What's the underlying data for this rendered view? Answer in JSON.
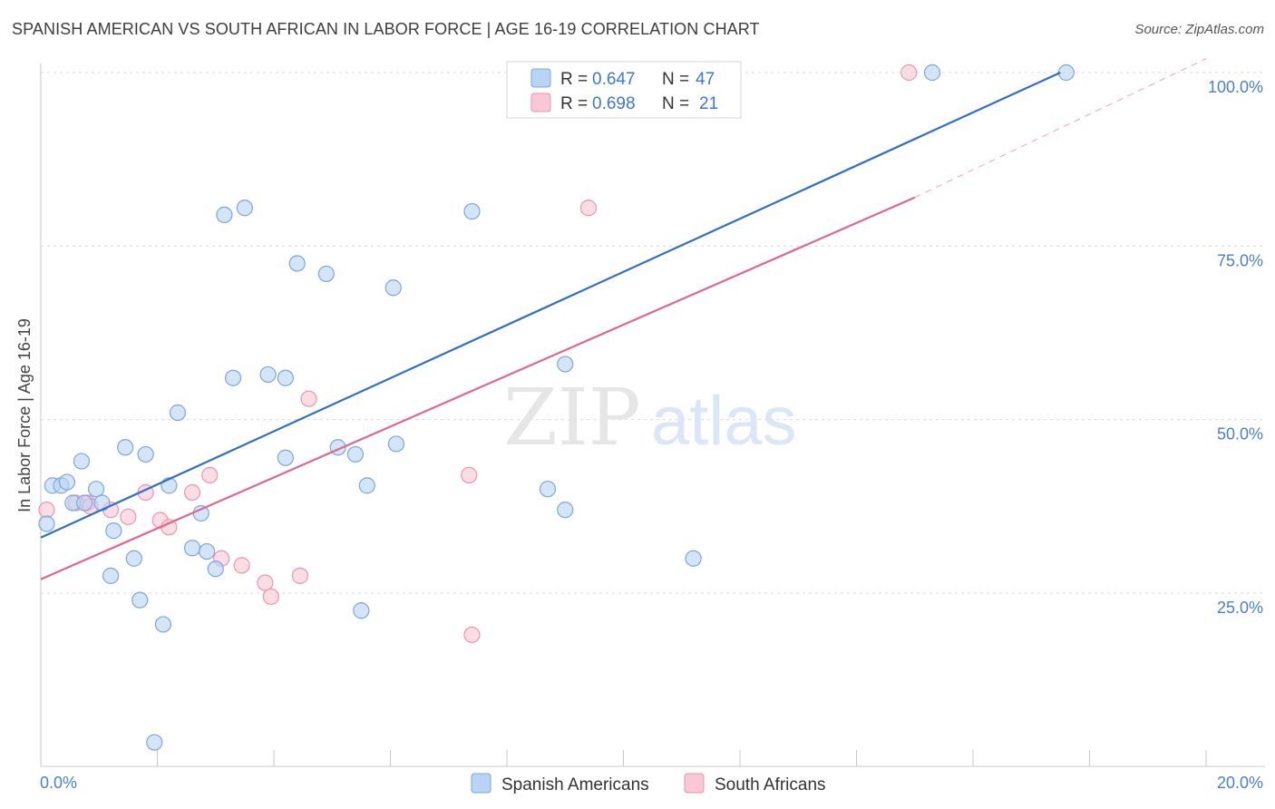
{
  "title": "SPANISH AMERICAN VS SOUTH AFRICAN IN LABOR FORCE | AGE 16-19 CORRELATION CHART",
  "source": "Source: ZipAtlas.com",
  "watermark": {
    "zip": "ZIP",
    "atlas": "atlas"
  },
  "colors": {
    "blue_fill": "#b9d3f4",
    "blue_stroke": "#7aa7e0",
    "blue_line": "#2f6fc9",
    "pink_fill": "#f9c7d6",
    "pink_stroke": "#ee94b1",
    "pink_line": "#e0678f",
    "axis_text": "#4a7fcf",
    "grid": "#d9d9d9"
  },
  "legend": {
    "rows": [
      {
        "r_label": "R =",
        "r_value": "0.647",
        "n_label": "N =",
        "n_value": "47"
      },
      {
        "r_label": "R =",
        "r_value": "0.698",
        "n_label": "N =",
        "n_value": "21"
      }
    ]
  },
  "chart_data": {
    "type": "scatter",
    "title": "SPANISH AMERICAN VS SOUTH AFRICAN IN LABOR FORCE | AGE 16-19 CORRELATION CHART",
    "xlabel": "",
    "ylabel": "In Labor Force | Age 16-19",
    "xlim": [
      0,
      20
    ],
    "ylim": [
      0,
      102
    ],
    "x_tick_labels": [
      "0.0%",
      "20.0%"
    ],
    "y_ticks": [
      25,
      50,
      75,
      100
    ],
    "y_tick_labels": [
      "25.0%",
      "50.0%",
      "75.0%",
      "100.0%"
    ],
    "grid": true,
    "series": [
      {
        "name": "Spanish Americans",
        "r": 0.647,
        "n": 47,
        "trend": {
          "x": [
            0,
            17.5
          ],
          "y": [
            33.0,
            100.0
          ],
          "dashed_to": null
        },
        "points": [
          [
            0.1,
            35.0
          ],
          [
            0.2,
            40.5
          ],
          [
            0.35,
            40.5
          ],
          [
            0.45,
            41.0
          ],
          [
            0.55,
            38.0
          ],
          [
            0.7,
            44.0
          ],
          [
            0.75,
            38.0
          ],
          [
            0.95,
            40.0
          ],
          [
            1.05,
            38.0
          ],
          [
            1.25,
            34.0
          ],
          [
            1.2,
            27.5
          ],
          [
            1.45,
            46.0
          ],
          [
            1.6,
            30.0
          ],
          [
            1.7,
            24.0
          ],
          [
            1.8,
            45.0
          ],
          [
            1.95,
            3.5
          ],
          [
            2.1,
            20.5
          ],
          [
            2.2,
            40.5
          ],
          [
            2.35,
            51.0
          ],
          [
            2.6,
            31.5
          ],
          [
            2.75,
            36.5
          ],
          [
            2.85,
            31.0
          ],
          [
            3.0,
            28.5
          ],
          [
            3.15,
            79.5
          ],
          [
            3.3,
            56.0
          ],
          [
            3.5,
            80.5
          ],
          [
            3.9,
            56.5
          ],
          [
            4.2,
            56.0
          ],
          [
            4.2,
            44.5
          ],
          [
            4.4,
            72.5
          ],
          [
            4.9,
            71.0
          ],
          [
            5.1,
            46.0
          ],
          [
            5.4,
            45.0
          ],
          [
            5.5,
            22.5
          ],
          [
            5.6,
            40.5
          ],
          [
            6.1,
            46.5
          ],
          [
            6.05,
            69.0
          ],
          [
            7.4,
            80.0
          ],
          [
            8.7,
            40.0
          ],
          [
            9.0,
            37.0
          ],
          [
            9.0,
            58.0
          ],
          [
            9.3,
            100.0
          ],
          [
            10.2,
            100.0
          ],
          [
            11.4,
            100.0
          ],
          [
            11.2,
            30.0
          ],
          [
            15.3,
            100.0
          ],
          [
            17.6,
            100.0
          ]
        ]
      },
      {
        "name": "South Africans",
        "r": 0.698,
        "n": 21,
        "trend": {
          "x": [
            0,
            15.0
          ],
          "y": [
            27.0,
            82.0
          ],
          "dashed_to": [
            20,
            102
          ]
        },
        "points": [
          [
            0.1,
            37.0
          ],
          [
            0.8,
            38.0
          ],
          [
            1.2,
            37.0
          ],
          [
            1.5,
            36.0
          ],
          [
            1.8,
            39.5
          ],
          [
            2.05,
            35.5
          ],
          [
            2.2,
            34.5
          ],
          [
            2.6,
            39.5
          ],
          [
            2.9,
            42.0
          ],
          [
            3.1,
            30.0
          ],
          [
            3.45,
            29.0
          ],
          [
            3.85,
            26.5
          ],
          [
            3.95,
            24.5
          ],
          [
            4.45,
            27.5
          ],
          [
            4.6,
            53.0
          ],
          [
            7.35,
            42.0
          ],
          [
            7.4,
            19.0
          ],
          [
            9.4,
            80.5
          ],
          [
            14.9,
            100.0
          ],
          [
            0.6,
            38.0
          ],
          [
            0.85,
            37.5
          ]
        ]
      }
    ]
  }
}
